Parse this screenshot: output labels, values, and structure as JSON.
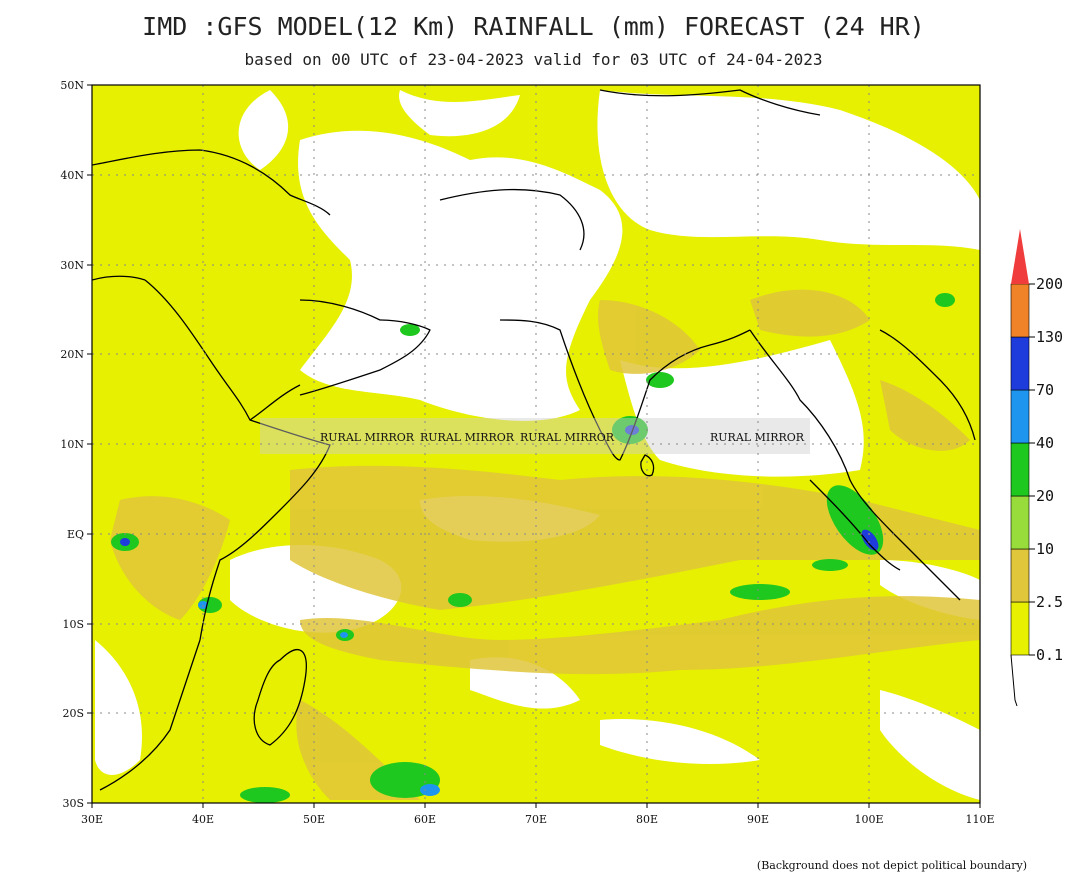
{
  "map": {
    "title": "IMD :GFS MODEL(12 Km) RAINFALL (mm) FORECAST (24 HR)",
    "subtitle": "based on 00 UTC of 23-04-2023 valid for 03 UTC of 24-04-2023",
    "footnote": "(Background does not depict political boundary)",
    "lat_labels": [
      "50N",
      "40N",
      "30N",
      "20N",
      "10N",
      "EQ",
      "10S",
      "20S",
      "30S"
    ],
    "lon_labels": [
      "30E",
      "40E",
      "50E",
      "60E",
      "70E",
      "80E",
      "90E",
      "100E",
      "110E"
    ],
    "watermark": "RURAL MIRROR"
  },
  "legend": {
    "unit": "mm",
    "labels": [
      "0.1",
      "2.5",
      "10",
      "20",
      "40",
      "70",
      "130",
      "200"
    ],
    "colors": [
      "#e6f000",
      "#e0c63a",
      "#98dc3c",
      "#1ec81e",
      "#1e96f0",
      "#1e3cdc",
      "#f08228",
      "#f03c3c"
    ]
  }
}
